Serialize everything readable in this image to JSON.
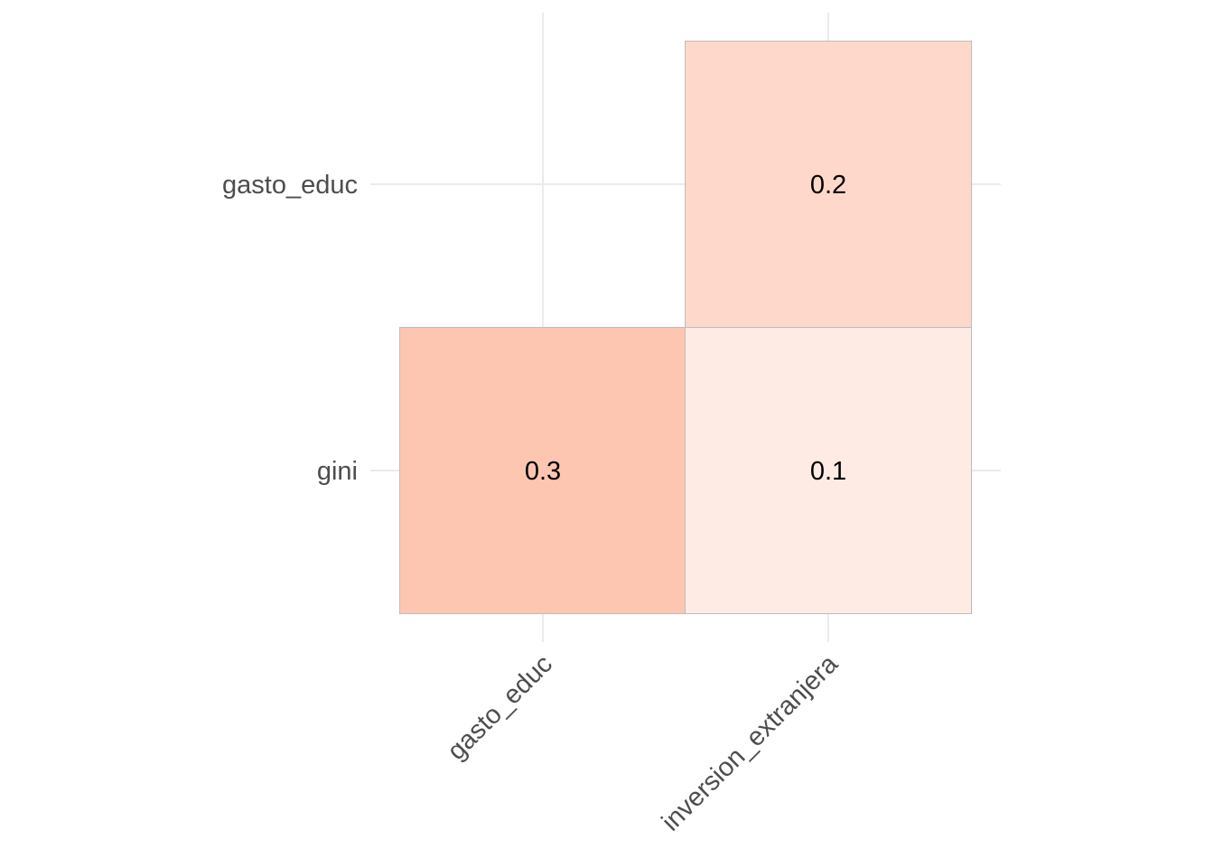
{
  "chart_data": {
    "type": "heatmap",
    "x_categories": [
      "gasto_educ",
      "inversion_extranjera"
    ],
    "y_categories": [
      "gini",
      "gasto_educ"
    ],
    "cells": [
      {
        "x": "gasto_educ",
        "y": "gini",
        "value": 0.3,
        "label": "0.3",
        "color": "#fdc6b1"
      },
      {
        "x": "inversion_extranjera",
        "y": "gini",
        "value": 0.1,
        "label": "0.1",
        "color": "#feebe4"
      },
      {
        "x": "inversion_extranjera",
        "y": "gasto_educ",
        "value": 0.2,
        "label": "0.2",
        "color": "#fed9cb"
      }
    ],
    "title": "",
    "xlabel": "",
    "ylabel": "",
    "grid": true,
    "legend": "none"
  }
}
